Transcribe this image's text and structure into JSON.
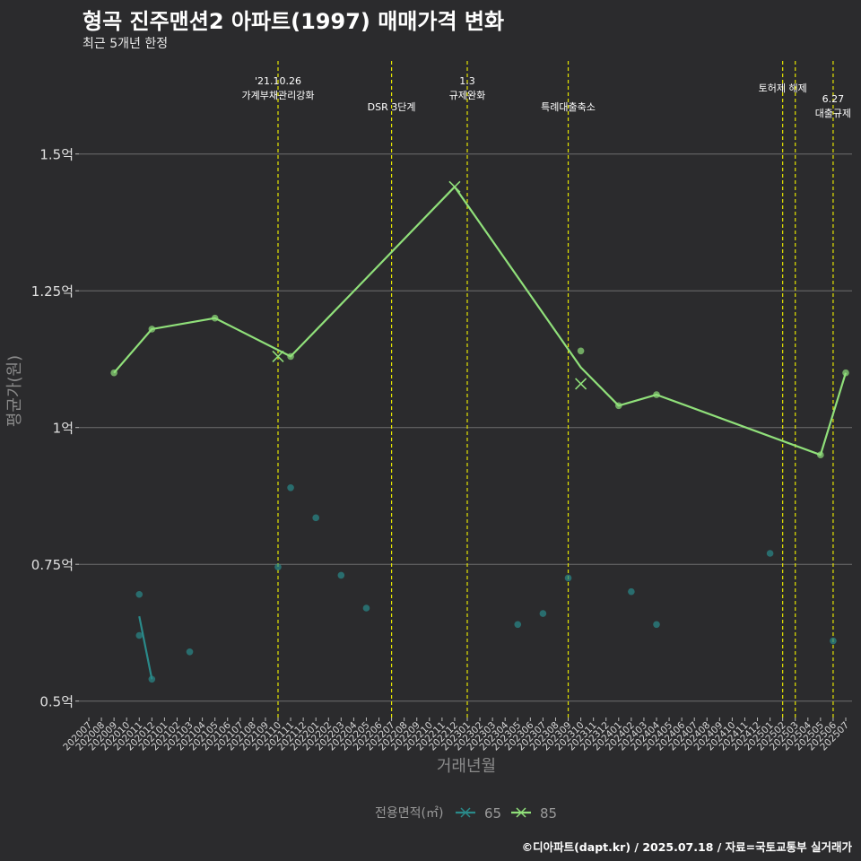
{
  "chart_data": {
    "type": "line",
    "title": "형곡 진주맨션2 아파트(1997) 매매가격 변화",
    "subtitle": "최근 5개년 한정",
    "caption": "©디아파트(dapt.kr) / 2025.07.18 / 자료=국토교통부 실거래가",
    "xlabel": "거래년월",
    "ylabel": "평균가(원)",
    "ylim": [
      0.47,
      1.67
    ],
    "y_unit": "억",
    "yticks": [
      {
        "value": 0.5,
        "label": "0.5억"
      },
      {
        "value": 0.75,
        "label": "0.75억"
      },
      {
        "value": 1.0,
        "label": "1억"
      },
      {
        "value": 1.25,
        "label": "1.25억"
      },
      {
        "value": 1.5,
        "label": "1.5억"
      }
    ],
    "x_categories": [
      "202007",
      "202008",
      "202009",
      "202010",
      "202011",
      "202012",
      "202101",
      "202102",
      "202103",
      "202104",
      "202105",
      "202106",
      "202107",
      "202108",
      "202109",
      "202110",
      "202111",
      "202112",
      "202201",
      "202202",
      "202203",
      "202204",
      "202205",
      "202206",
      "202207",
      "202208",
      "202209",
      "202210",
      "202211",
      "202212",
      "202301",
      "202302",
      "202303",
      "202304",
      "202305",
      "202306",
      "202307",
      "202308",
      "202309",
      "202310",
      "202311",
      "202312",
      "202401",
      "202402",
      "202403",
      "202404",
      "202405",
      "202406",
      "202407",
      "202408",
      "202409",
      "202410",
      "202411",
      "202412",
      "202501",
      "202502",
      "202503",
      "202504",
      "202505",
      "202506",
      "202507"
    ],
    "series": [
      {
        "name": "65",
        "color": "#2a8a8a",
        "marker": "x",
        "line": [
          {
            "x": "202011",
            "y": 0.655
          },
          {
            "x": "202012",
            "y": 0.54
          }
        ],
        "points": [
          {
            "x": "202011",
            "y": 0.695
          },
          {
            "x": "202011",
            "y": 0.62
          },
          {
            "x": "202012",
            "y": 0.54
          },
          {
            "x": "202103",
            "y": 0.59
          },
          {
            "x": "202110",
            "y": 0.745
          },
          {
            "x": "202111",
            "y": 0.89
          },
          {
            "x": "202201",
            "y": 0.835
          },
          {
            "x": "202203",
            "y": 0.73
          },
          {
            "x": "202205",
            "y": 0.67
          },
          {
            "x": "202305",
            "y": 0.64
          },
          {
            "x": "202307",
            "y": 0.66
          },
          {
            "x": "202309",
            "y": 0.725
          },
          {
            "x": "202402",
            "y": 0.7
          },
          {
            "x": "202404",
            "y": 0.64
          },
          {
            "x": "202501",
            "y": 0.77
          },
          {
            "x": "202506",
            "y": 0.61
          }
        ]
      },
      {
        "name": "85",
        "color": "#90e07a",
        "marker": "x",
        "line": [
          {
            "x": "202009",
            "y": 1.1
          },
          {
            "x": "202012",
            "y": 1.18
          },
          {
            "x": "202105",
            "y": 1.2
          },
          {
            "x": "202111",
            "y": 1.13
          },
          {
            "x": "202212",
            "y": 1.44
          },
          {
            "x": "202310",
            "y": 1.11
          },
          {
            "x": "202401",
            "y": 1.04
          },
          {
            "x": "202404",
            "y": 1.06
          },
          {
            "x": "202505",
            "y": 0.95
          },
          {
            "x": "202507",
            "y": 1.1
          }
        ],
        "points": [
          {
            "x": "202009",
            "y": 1.1
          },
          {
            "x": "202012",
            "y": 1.18
          },
          {
            "x": "202105",
            "y": 1.2
          },
          {
            "x": "202111",
            "y": 1.13
          },
          {
            "x": "202310",
            "y": 1.14
          },
          {
            "x": "202401",
            "y": 1.04
          },
          {
            "x": "202404",
            "y": 1.06
          },
          {
            "x": "202505",
            "y": 0.95
          },
          {
            "x": "202507",
            "y": 1.1
          }
        ],
        "x_markers": [
          {
            "x": "202110",
            "y": 1.13
          },
          {
            "x": "202212",
            "y": 1.44
          },
          {
            "x": "202310",
            "y": 1.08
          }
        ]
      }
    ],
    "events": [
      {
        "x": "202110",
        "lines": [
          "'21.10.26",
          "가계부채관리강화"
        ]
      },
      {
        "x": "202207",
        "lines": [
          "DSR 3단계"
        ]
      },
      {
        "x": "202301",
        "lines": [
          "1.3",
          "규제완화"
        ]
      },
      {
        "x": "202309",
        "lines": [
          "특례대출축소"
        ]
      },
      {
        "x": "202502",
        "lines": [
          "토허제 해제"
        ]
      },
      {
        "x": "202503",
        "lines": []
      },
      {
        "x": "202506",
        "lines": [
          "6.27",
          "대출규제"
        ]
      }
    ],
    "legend": {
      "title": "전용면적(㎡)",
      "position": "bottom",
      "entries": [
        "65",
        "85"
      ]
    },
    "grid": true
  }
}
